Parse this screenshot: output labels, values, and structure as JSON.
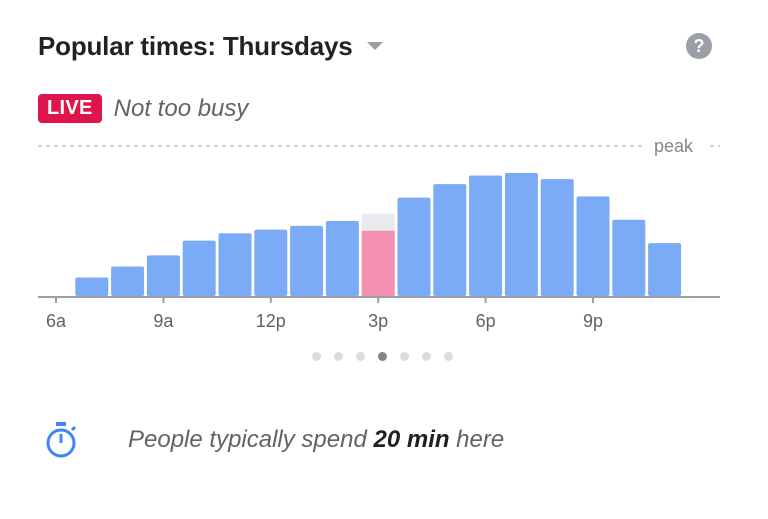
{
  "header": {
    "title": "Popular times: Thursdays",
    "help_glyph": "?"
  },
  "live": {
    "badge": "LIVE",
    "status": "Not too busy"
  },
  "chart_data": {
    "type": "bar",
    "peak_label": "peak",
    "hours": [
      "6a",
      "7a",
      "8a",
      "9a",
      "10a",
      "11a",
      "12p",
      "1p",
      "2p",
      "3p",
      "4p",
      "5p",
      "6p",
      "7p",
      "8p",
      "9p",
      "10p",
      "11p"
    ],
    "tick_labels": [
      "6a",
      "9a",
      "12p",
      "3p",
      "6p",
      "9p"
    ],
    "tick_hours": [
      "6a",
      "9a",
      "12p",
      "3p",
      "6p",
      "9p"
    ],
    "usual": [
      0,
      15,
      24,
      33,
      45,
      51,
      54,
      57,
      61,
      67,
      80,
      91,
      98,
      100,
      95,
      81,
      62,
      43
    ],
    "live": {
      "hour": "3p",
      "value": 53
    },
    "ylim": [
      0,
      100
    ],
    "colors": {
      "bar": "#7baaf7",
      "live": "#f48fb1",
      "usual_behind_live": "#e8eaed",
      "axis": "#9aa0a6"
    }
  },
  "carousel": {
    "count": 7,
    "active": 3
  },
  "footer": {
    "icon": "stopwatch-icon",
    "text_before": "People typically spend ",
    "text_bold": "20 min",
    "text_after": " here",
    "icon_color": "#4285f4"
  }
}
